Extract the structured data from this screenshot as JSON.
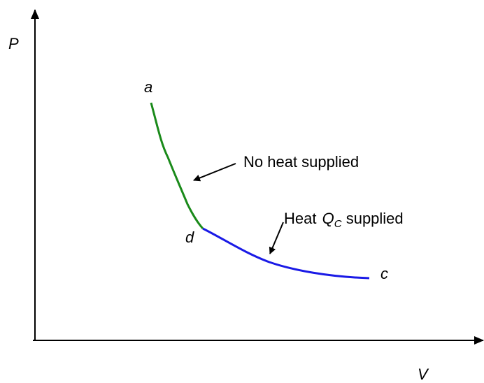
{
  "axes": {
    "y_label": "P",
    "x_label": "V"
  },
  "points": {
    "a": "a",
    "d": "d",
    "c": "c"
  },
  "annotations": {
    "adiabatic": "No heat supplied",
    "isothermal": {
      "prefix": "Heat",
      "symbol": "Q",
      "subscript": "C",
      "suffix": "supplied"
    }
  }
}
